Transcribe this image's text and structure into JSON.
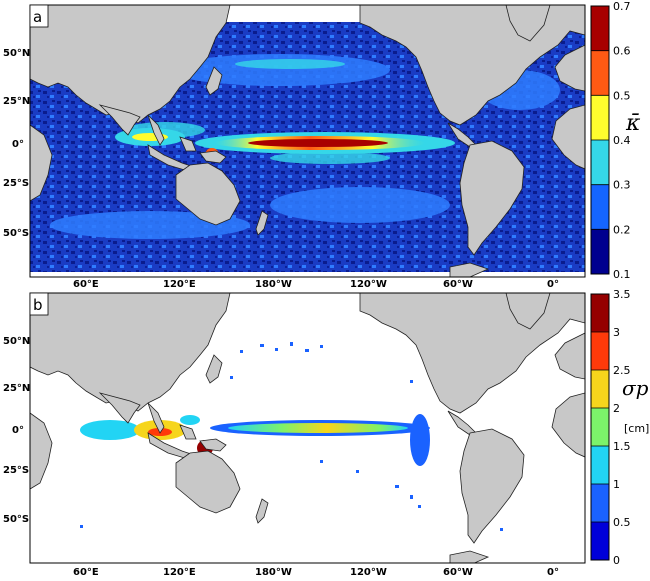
{
  "panels": [
    {
      "label": "a",
      "variable": "κ̄",
      "units": "",
      "colorbar": {
        "ticks": [
          "0.1",
          "0.2",
          "0.3",
          "0.4",
          "0.5",
          "0.6",
          "0.7"
        ],
        "colors": [
          "#00008f",
          "#1565ff",
          "#35d7e8",
          "#fffd2e",
          "#ff5a14",
          "#a80000"
        ]
      },
      "background": "ocean-filled"
    },
    {
      "label": "b",
      "variable": "σp",
      "units": "[cm]",
      "colorbar": {
        "ticks": [
          "0",
          "0.5",
          "1",
          "1.5",
          "2",
          "2.5",
          "3",
          "3.5"
        ],
        "colors": [
          "#0000d9",
          "#1a62ff",
          "#22d4f4",
          "#7cf36a",
          "#f6d51c",
          "#ff3a0a",
          "#950000"
        ]
      },
      "background": "ocean-white"
    }
  ],
  "axes": {
    "lon_ticks": [
      "60°E",
      "120°E",
      "180°W",
      "120°W",
      "60°W",
      "0°"
    ],
    "lat_ticks": [
      "50°N",
      "25°N",
      "0°",
      "25°S",
      "50°S"
    ]
  },
  "colors": {
    "land": "#c8c8c8",
    "ocean_base": "#1d3fbf",
    "coast": "#222222"
  }
}
